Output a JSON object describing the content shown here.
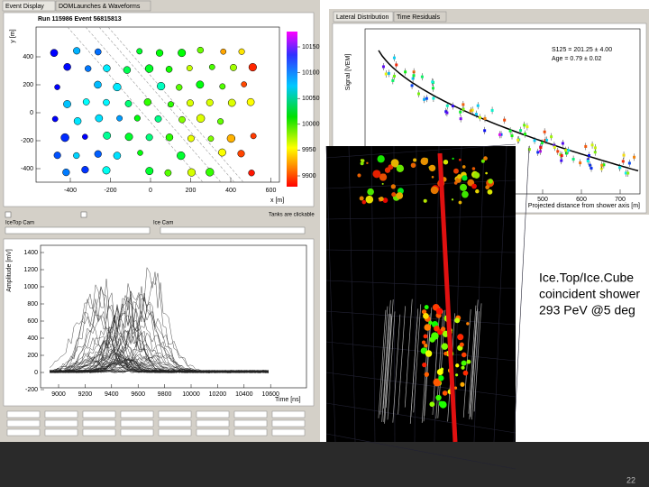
{
  "tabs_left": [
    "Event Display",
    "DOMLaunches & Waveforms"
  ],
  "tabs_right": [
    "Lateral Distribution",
    "Time Residuals"
  ],
  "event_map": {
    "title": "Run 115986  Event 56815813",
    "x_label": "x [m]",
    "y_label": "y [m]",
    "xticks": [
      -400,
      -200,
      0,
      200,
      400,
      600
    ],
    "yticks": [
      400,
      200,
      0,
      -200,
      -400
    ],
    "colorbar_ticks": [
      10150,
      10100,
      10050,
      10000,
      9950,
      9900
    ]
  },
  "controls_top": [
    "IceTop Cam",
    "Ice Cam",
    "Tanks are clickable"
  ],
  "lateral": {
    "y_label": "Signal [VEM]",
    "x_label": "Projected distance from shower axis [m]",
    "fit_s125": "S125 = 201.25 ± 4.00",
    "fit_age": "Age = 0.79 ± 0.02",
    "xticks": [
      500,
      600,
      700
    ]
  },
  "waveforms": {
    "y_label": "Amplitude [mV]",
    "x_label": "Time [ns]",
    "yticks": [
      1400,
      1200,
      1000,
      800,
      600,
      400,
      200,
      0,
      -200
    ],
    "xticks": [
      9000,
      9200,
      9400,
      9600,
      9800,
      10000,
      10200,
      10400,
      10600
    ]
  },
  "annotation": [
    "Ice.Top/Ice.Cube",
    "coincident shower",
    "293 PeV @5 deg"
  ],
  "page_number": "22"
}
